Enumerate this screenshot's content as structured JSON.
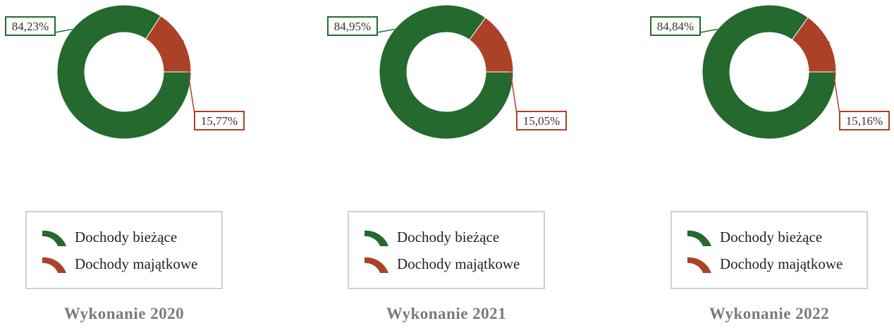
{
  "colors": {
    "biezace": "#24692e",
    "majatkowe": "#ab4228",
    "legend_border": "#d0d0d0",
    "title": "#7a7a7a"
  },
  "legend": {
    "items": [
      {
        "label": "Dochody bieżące",
        "color": "#24692e",
        "icon": "arc-swatch-icon"
      },
      {
        "label": "Dochody majątkowe",
        "color": "#ab4228",
        "icon": "arc-swatch-icon"
      }
    ]
  },
  "chart_data": [
    {
      "type": "pie",
      "title": "Wykonanie 2020",
      "categories": [
        "Dochody bieżące",
        "Dochody majątkowe"
      ],
      "values": [
        84.23,
        15.77
      ],
      "labels": [
        "84,23%",
        "15,77%"
      ]
    },
    {
      "type": "pie",
      "title": "Wykonanie 2021",
      "categories": [
        "Dochody bieżące",
        "Dochody majątkowe"
      ],
      "values": [
        84.95,
        15.05
      ],
      "labels": [
        "84,95%",
        "15,05%"
      ]
    },
    {
      "type": "pie",
      "title": "Wykonanie 2022",
      "categories": [
        "Dochody bieżące",
        "Dochody majątkowe"
      ],
      "values": [
        84.84,
        15.16
      ],
      "labels": [
        "84,84%",
        "15,16%"
      ]
    }
  ]
}
